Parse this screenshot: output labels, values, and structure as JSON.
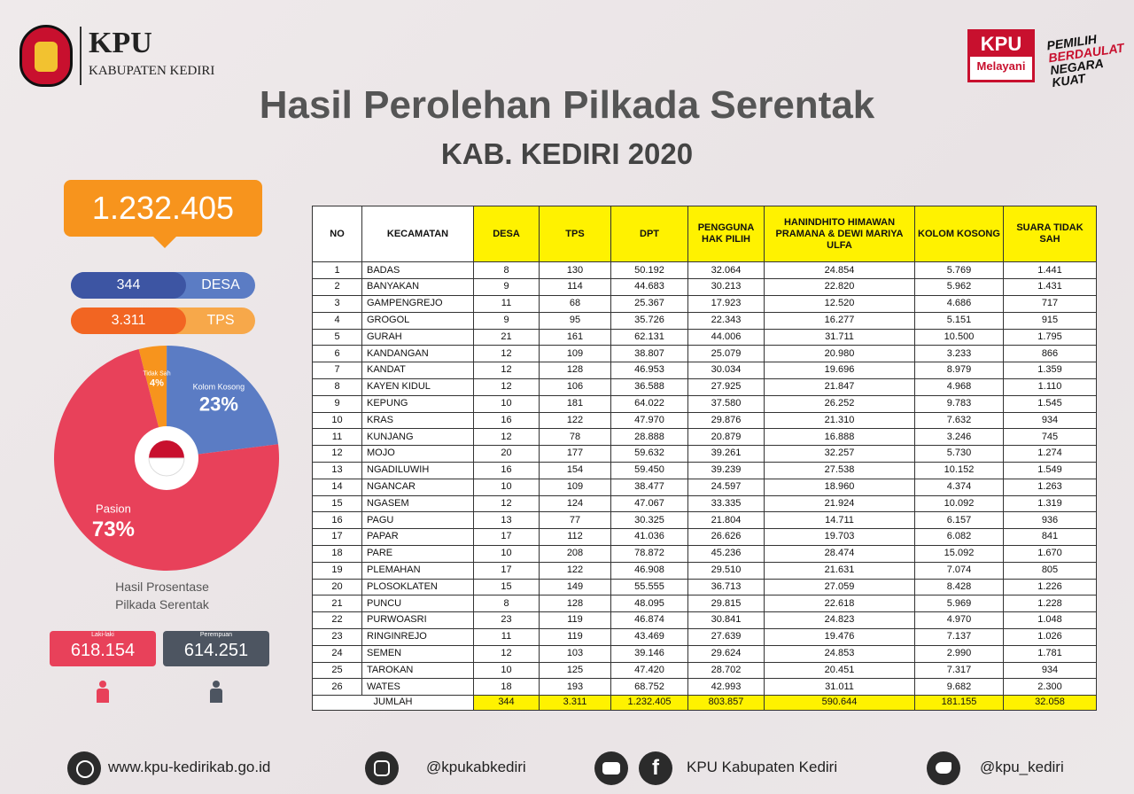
{
  "header": {
    "logo_title": "KPU",
    "logo_subtitle": "KABUPATEN KEDIRI",
    "title": "Hasil Perolehan Pilkada Serentak",
    "subtitle": "KAB. KEDIRI 2020",
    "badge_top": "KPU",
    "badge_bottom": "Melayani",
    "slogan": [
      "PEMILIH",
      "BERDAULAT",
      "NEGARA",
      "KUAT"
    ]
  },
  "summary": {
    "total": "1.232.405",
    "desa": {
      "value": "344",
      "label": "DESA"
    },
    "tps": {
      "value": "3.311",
      "label": "TPS"
    }
  },
  "pie": {
    "labels": [
      "Tidak Sah",
      "Kolom Kosong",
      "Pasion"
    ],
    "values": [
      4,
      23,
      73
    ],
    "value_labels": [
      "4%",
      "23%",
      "73%"
    ],
    "colors": [
      "#f7941d",
      "#5b7cc4",
      "#e8415a"
    ],
    "caption": "Hasil Prosentase Pilkada Serentak"
  },
  "gender": [
    {
      "label": "Laki-laki",
      "value": "618.154"
    },
    {
      "label": "Perempuan",
      "value": "614.251"
    }
  ],
  "table": {
    "headers": [
      "NO",
      "KECAMATAN",
      "DESA",
      "TPS",
      "DPT",
      "PENGGUNA HAK PILIH",
      "HANINDHITO HIMAWAN PRAMANA & DEWI MARIYA ULFA",
      "KOLOM KOSONG",
      "SUARA TIDAK SAH"
    ],
    "rows": [
      [
        "1",
        "BADAS",
        "8",
        "130",
        "50.192",
        "32.064",
        "24.854",
        "5.769",
        "1.441"
      ],
      [
        "2",
        "BANYAKAN",
        "9",
        "114",
        "44.683",
        "30.213",
        "22.820",
        "5.962",
        "1.431"
      ],
      [
        "3",
        "GAMPENGREJO",
        "11",
        "68",
        "25.367",
        "17.923",
        "12.520",
        "4.686",
        "717"
      ],
      [
        "4",
        "GROGOL",
        "9",
        "95",
        "35.726",
        "22.343",
        "16.277",
        "5.151",
        "915"
      ],
      [
        "5",
        "GURAH",
        "21",
        "161",
        "62.131",
        "44.006",
        "31.711",
        "10.500",
        "1.795"
      ],
      [
        "6",
        "KANDANGAN",
        "12",
        "109",
        "38.807",
        "25.079",
        "20.980",
        "3.233",
        "866"
      ],
      [
        "7",
        "KANDAT",
        "12",
        "128",
        "46.953",
        "30.034",
        "19.696",
        "8.979",
        "1.359"
      ],
      [
        "8",
        "KAYEN KIDUL",
        "12",
        "106",
        "36.588",
        "27.925",
        "21.847",
        "4.968",
        "1.110"
      ],
      [
        "9",
        "KEPUNG",
        "10",
        "181",
        "64.022",
        "37.580",
        "26.252",
        "9.783",
        "1.545"
      ],
      [
        "10",
        "KRAS",
        "16",
        "122",
        "47.970",
        "29.876",
        "21.310",
        "7.632",
        "934"
      ],
      [
        "11",
        "KUNJANG",
        "12",
        "78",
        "28.888",
        "20.879",
        "16.888",
        "3.246",
        "745"
      ],
      [
        "12",
        "MOJO",
        "20",
        "177",
        "59.632",
        "39.261",
        "32.257",
        "5.730",
        "1.274"
      ],
      [
        "13",
        "NGADILUWIH",
        "16",
        "154",
        "59.450",
        "39.239",
        "27.538",
        "10.152",
        "1.549"
      ],
      [
        "14",
        "NGANCAR",
        "10",
        "109",
        "38.477",
        "24.597",
        "18.960",
        "4.374",
        "1.263"
      ],
      [
        "15",
        "NGASEM",
        "12",
        "124",
        "47.067",
        "33.335",
        "21.924",
        "10.092",
        "1.319"
      ],
      [
        "16",
        "PAGU",
        "13",
        "77",
        "30.325",
        "21.804",
        "14.711",
        "6.157",
        "936"
      ],
      [
        "17",
        "PAPAR",
        "17",
        "112",
        "41.036",
        "26.626",
        "19.703",
        "6.082",
        "841"
      ],
      [
        "18",
        "PARE",
        "10",
        "208",
        "78.872",
        "45.236",
        "28.474",
        "15.092",
        "1.670"
      ],
      [
        "19",
        "PLEMAHAN",
        "17",
        "122",
        "46.908",
        "29.510",
        "21.631",
        "7.074",
        "805"
      ],
      [
        "20",
        "PLOSOKLATEN",
        "15",
        "149",
        "55.555",
        "36.713",
        "27.059",
        "8.428",
        "1.226"
      ],
      [
        "21",
        "PUNCU",
        "8",
        "128",
        "48.095",
        "29.815",
        "22.618",
        "5.969",
        "1.228"
      ],
      [
        "22",
        "PURWOASRI",
        "23",
        "119",
        "46.874",
        "30.841",
        "24.823",
        "4.970",
        "1.048"
      ],
      [
        "23",
        "RINGINREJO",
        "11",
        "119",
        "43.469",
        "27.639",
        "19.476",
        "7.137",
        "1.026"
      ],
      [
        "24",
        "SEMEN",
        "12",
        "103",
        "39.146",
        "29.624",
        "24.853",
        "2.990",
        "1.781"
      ],
      [
        "25",
        "TAROKAN",
        "10",
        "125",
        "47.420",
        "28.702",
        "20.451",
        "7.317",
        "934"
      ],
      [
        "26",
        "WATES",
        "18",
        "193",
        "68.752",
        "42.993",
        "31.011",
        "9.682",
        "2.300"
      ]
    ],
    "total": [
      "JUMLAH",
      "344",
      "3.311",
      "1.232.405",
      "803.857",
      "590.644",
      "181.155",
      "32.058"
    ]
  },
  "footer": {
    "website": "www.kpu-kedirikab.go.id",
    "instagram": "@kpukabkediri",
    "facebook": "KPU Kabupaten Kediri",
    "twitter": "@kpu_kediri"
  }
}
